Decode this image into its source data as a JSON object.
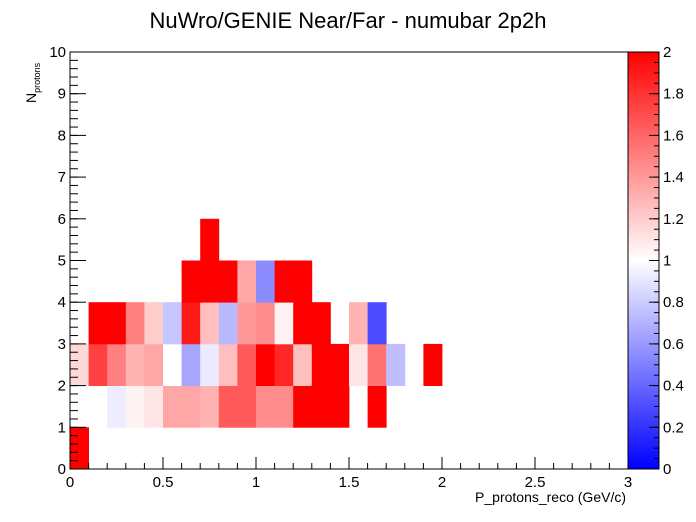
{
  "chart_data": {
    "type": "heatmap",
    "title": "NuWro/GENIE Near/Far - numubar 2p2h",
    "xlabel": "P_protons_reco (GeV/c)",
    "ylabel_main": "N",
    "ylabel_sub": "protons",
    "xlim": [
      0,
      3
    ],
    "ylim": [
      0,
      10
    ],
    "zlim": [
      0,
      2
    ],
    "x_bin_width": 0.1,
    "y_bin_width": 1,
    "x_ticks": [
      "0",
      "0.5",
      "1",
      "1.5",
      "2",
      "2.5",
      "3"
    ],
    "y_ticks": [
      "0",
      "1",
      "2",
      "3",
      "4",
      "5",
      "6",
      "7",
      "8",
      "9",
      "10"
    ],
    "z_ticks": [
      "0",
      "0.2",
      "0.4",
      "0.6",
      "0.8",
      "1",
      "1.2",
      "1.4",
      "1.6",
      "1.8",
      "2"
    ],
    "colorscale": [
      "#0000ff",
      "#ffffff",
      "#ff0000"
    ],
    "rows": [
      {
        "y": 0,
        "cells": [
          [
            0.0,
            2.0
          ]
        ]
      },
      {
        "y": 1,
        "cells": [
          [
            0.2,
            0.93
          ],
          [
            0.3,
            1.05
          ],
          [
            0.4,
            1.1
          ],
          [
            0.5,
            1.35
          ],
          [
            0.6,
            1.35
          ],
          [
            0.7,
            1.3
          ],
          [
            0.8,
            1.65
          ],
          [
            0.9,
            1.65
          ],
          [
            1.0,
            1.45
          ],
          [
            1.1,
            1.45
          ],
          [
            1.2,
            2.0
          ],
          [
            1.3,
            2.0
          ],
          [
            1.4,
            2.0
          ],
          [
            1.6,
            2.0
          ]
        ]
      },
      {
        "y": 2,
        "cells": [
          [
            0.0,
            1.15
          ],
          [
            0.1,
            1.75
          ],
          [
            0.2,
            1.5
          ],
          [
            0.3,
            1.3
          ],
          [
            0.4,
            1.35
          ],
          [
            0.5,
            1.0
          ],
          [
            0.6,
            0.65
          ],
          [
            0.7,
            0.92
          ],
          [
            0.8,
            1.25
          ],
          [
            0.9,
            1.65
          ],
          [
            1.0,
            2.0
          ],
          [
            1.1,
            1.85
          ],
          [
            1.2,
            1.25
          ],
          [
            1.3,
            2.0
          ],
          [
            1.4,
            2.0
          ],
          [
            1.5,
            1.1
          ],
          [
            1.6,
            1.55
          ],
          [
            1.7,
            0.75
          ],
          [
            1.9,
            2.0
          ]
        ]
      },
      {
        "y": 3,
        "cells": [
          [
            0.1,
            2.0
          ],
          [
            0.2,
            2.0
          ],
          [
            0.3,
            1.5
          ],
          [
            0.4,
            1.2
          ],
          [
            0.5,
            0.78
          ],
          [
            0.6,
            1.9
          ],
          [
            0.7,
            1.25
          ],
          [
            0.8,
            0.72
          ],
          [
            0.9,
            1.4
          ],
          [
            1.0,
            1.45
          ],
          [
            1.1,
            1.05
          ],
          [
            1.2,
            2.0
          ],
          [
            1.3,
            2.0
          ],
          [
            1.5,
            1.3
          ],
          [
            1.6,
            0.3
          ]
        ]
      },
      {
        "y": 4,
        "cells": [
          [
            0.6,
            2.0
          ],
          [
            0.7,
            2.0
          ],
          [
            0.8,
            2.0
          ],
          [
            0.9,
            1.35
          ],
          [
            1.0,
            0.55
          ],
          [
            1.1,
            2.0
          ],
          [
            1.2,
            2.0
          ]
        ]
      },
      {
        "y": 5,
        "cells": [
          [
            0.7,
            2.0
          ]
        ]
      }
    ]
  }
}
